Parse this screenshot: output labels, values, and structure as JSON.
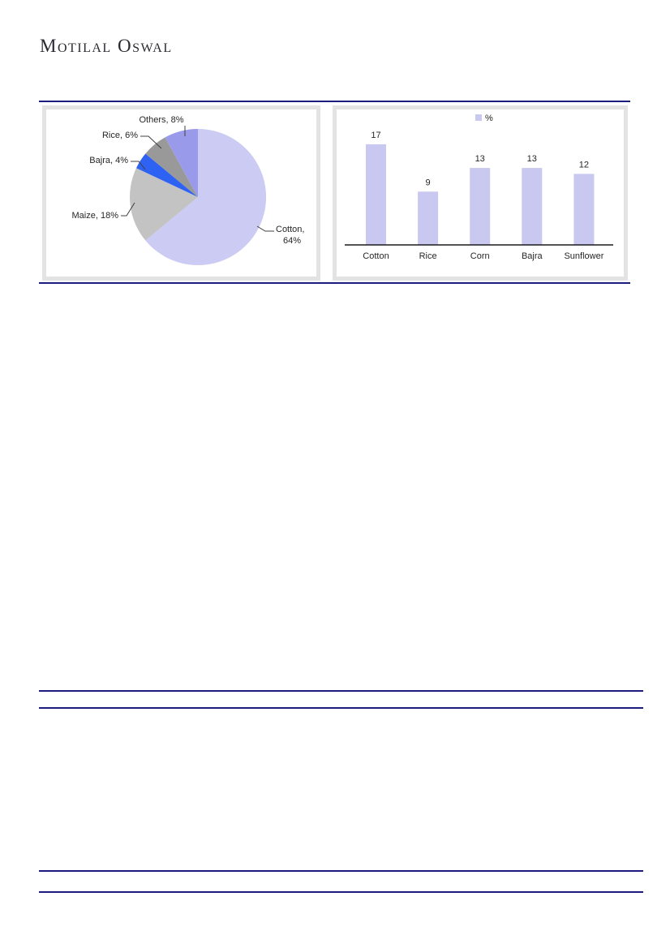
{
  "brand": {
    "logo_text": "Motilal Oswal"
  },
  "rules": {
    "count": 4,
    "color": "#1c1c7e"
  },
  "colors": {
    "panel_border": "#1c1c7e",
    "chart_frame": "#e3e3e3",
    "axis": "#1a1a1a",
    "text": "#262626"
  },
  "chart_data": [
    {
      "type": "pie",
      "title": "",
      "labels": [
        "Cotton",
        "Maize",
        "Bajra",
        "Rice",
        "Others"
      ],
      "values": [
        64,
        18,
        4,
        6,
        8
      ],
      "unit": "%",
      "slice_label_format": "{label}, {value}%",
      "colors": [
        "#cbcbf3",
        "#c3c3c3",
        "#2e62f2",
        "#999999",
        "#9a9aeb"
      ],
      "start_angle_deg": 0,
      "direction": "clockwise",
      "legend_position": "none",
      "leader_color": "#404040"
    },
    {
      "type": "bar",
      "categories": [
        "Cotton",
        "Rice",
        "Corn",
        "Bajra",
        "Sunflower"
      ],
      "values": [
        17,
        9,
        13,
        13,
        12
      ],
      "legend": [
        "%"
      ],
      "legend_position": "top",
      "bar_color": "#c8c8f0",
      "ylim": [
        0,
        18
      ],
      "gridlines": false,
      "value_labels": true,
      "xlabel": "",
      "ylabel": ""
    }
  ]
}
